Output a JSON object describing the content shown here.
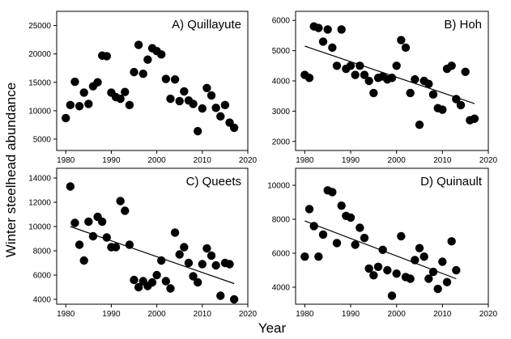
{
  "figure": {
    "ylabel": "Winter steelhead abundance",
    "xlabel": "Year"
  },
  "colors": {
    "marker": "#000000",
    "axis": "#000000",
    "trend": "#000000"
  },
  "chart_data": [
    {
      "type": "scatter",
      "title": "A) Quillayute",
      "xlim": [
        1978,
        2020
      ],
      "ylim": [
        3000,
        27500
      ],
      "xticks": [
        1980,
        1990,
        2000,
        2010,
        2020
      ],
      "yticks": [
        5000,
        10000,
        15000,
        20000,
        25000
      ],
      "trend": null,
      "x": [
        1980,
        1981,
        1982,
        1983,
        1984,
        1985,
        1986,
        1987,
        1988,
        1989,
        1990,
        1991,
        1992,
        1993,
        1994,
        1995,
        1996,
        1997,
        1998,
        1999,
        2000,
        2001,
        2002,
        2003,
        2004,
        2005,
        2006,
        2007,
        2008,
        2009,
        2010,
        2011,
        2012,
        2013,
        2014,
        2015,
        2016,
        2017
      ],
      "y": [
        8700,
        11000,
        15100,
        10800,
        13200,
        11200,
        14300,
        15000,
        19700,
        19600,
        13200,
        12400,
        12100,
        13300,
        11000,
        16800,
        21600,
        16500,
        19000,
        21000,
        20500,
        19900,
        15600,
        12100,
        15500,
        11700,
        13400,
        11800,
        11200,
        6400,
        10400,
        14000,
        12700,
        10500,
        9000,
        11000,
        7900,
        7000
      ]
    },
    {
      "type": "scatter",
      "title": "B) Hoh",
      "xlim": [
        1978,
        2020
      ],
      "ylim": [
        1700,
        6300
      ],
      "xticks": [
        1980,
        1990,
        2000,
        2010,
        2020
      ],
      "yticks": [
        2000,
        3000,
        4000,
        5000,
        6000
      ],
      "trend": {
        "x": [
          1980,
          2017
        ],
        "y": [
          5150,
          3250
        ]
      },
      "x": [
        1980,
        1981,
        1982,
        1983,
        1984,
        1985,
        1986,
        1987,
        1988,
        1989,
        1990,
        1991,
        1992,
        1993,
        1994,
        1995,
        1996,
        1997,
        1998,
        1999,
        2000,
        2001,
        2002,
        2003,
        2004,
        2005,
        2006,
        2007,
        2008,
        2009,
        2010,
        2011,
        2012,
        2013,
        2014,
        2015,
        2016,
        2017
      ],
      "y": [
        4200,
        4100,
        5800,
        5750,
        5300,
        5700,
        5100,
        4500,
        5700,
        4400,
        4500,
        4200,
        4500,
        4200,
        4000,
        3600,
        4100,
        4150,
        4050,
        4100,
        4500,
        5350,
        5100,
        3600,
        4050,
        2550,
        4000,
        3900,
        3550,
        3100,
        3050,
        4400,
        4500,
        3400,
        3200,
        4300,
        2700,
        2750
      ]
    },
    {
      "type": "scatter",
      "title": "C) Queets",
      "xlim": [
        1978,
        2020
      ],
      "ylim": [
        3600,
        14800
      ],
      "xticks": [
        1980,
        1990,
        2000,
        2010,
        2020
      ],
      "yticks": [
        4000,
        6000,
        8000,
        10000,
        12000,
        14000
      ],
      "trend": {
        "x": [
          1981,
          2017
        ],
        "y": [
          10000,
          5300
        ]
      },
      "x": [
        1981,
        1982,
        1983,
        1984,
        1985,
        1986,
        1987,
        1988,
        1989,
        1990,
        1991,
        1992,
        1993,
        1994,
        1995,
        1996,
        1997,
        1998,
        1999,
        2000,
        2001,
        2002,
        2003,
        2004,
        2005,
        2006,
        2007,
        2008,
        2009,
        2010,
        2011,
        2012,
        2013,
        2014,
        2015,
        2016,
        2017
      ],
      "y": [
        13300,
        10300,
        8500,
        7200,
        10400,
        9200,
        10800,
        10400,
        9100,
        8300,
        8300,
        12100,
        11300,
        8500,
        5600,
        5000,
        5500,
        5100,
        5400,
        6000,
        7200,
        5500,
        4900,
        9500,
        7700,
        8300,
        7000,
        5900,
        5400,
        6900,
        8200,
        7600,
        6800,
        4300,
        7000,
        6900,
        4000
      ]
    },
    {
      "type": "scatter",
      "title": "D) Quinault",
      "xlim": [
        1978,
        2020
      ],
      "ylim": [
        3000,
        11000
      ],
      "xticks": [
        1980,
        1990,
        2000,
        2010,
        2020
      ],
      "yticks": [
        4000,
        6000,
        8000,
        10000
      ],
      "trend": {
        "x": [
          1980,
          2013
        ],
        "y": [
          7900,
          4500
        ]
      },
      "x": [
        1980,
        1981,
        1982,
        1983,
        1984,
        1985,
        1986,
        1987,
        1988,
        1989,
        1990,
        1991,
        1992,
        1993,
        1994,
        1995,
        1996,
        1997,
        1998,
        1999,
        2000,
        2001,
        2002,
        2003,
        2004,
        2005,
        2006,
        2007,
        2008,
        2009,
        2010,
        2011,
        2012,
        2013
      ],
      "y": [
        5800,
        8600,
        7600,
        5800,
        7100,
        9700,
        9600,
        6600,
        8800,
        8200,
        8100,
        6500,
        7500,
        6900,
        5100,
        4700,
        5200,
        6200,
        5000,
        3500,
        4800,
        7000,
        4600,
        4500,
        5600,
        6300,
        5800,
        4500,
        4900,
        3900,
        5500,
        4300,
        6700,
        5000
      ]
    }
  ]
}
